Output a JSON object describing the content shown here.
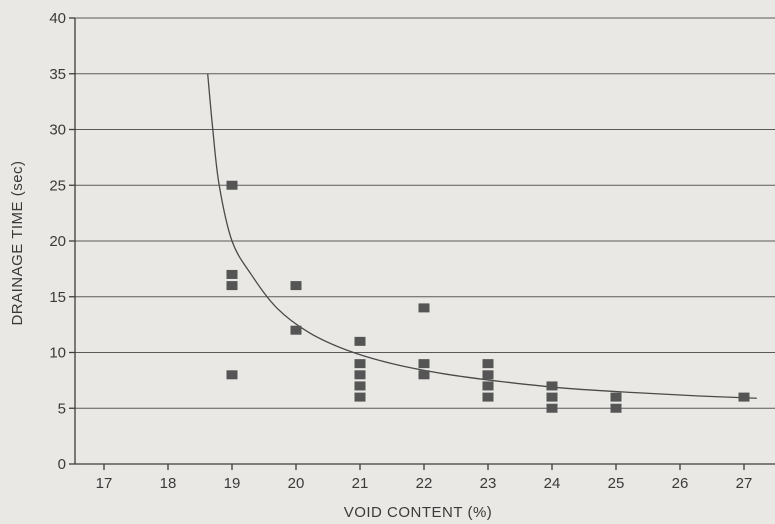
{
  "chart_data": {
    "type": "scatter",
    "xlabel": "VOID CONTENT (%)",
    "ylabel": "DRAINAGE TIME (sec)",
    "xlim": [
      16.5,
      27.5
    ],
    "ylim": [
      0,
      40
    ],
    "x_ticks": [
      17,
      18,
      19,
      20,
      21,
      22,
      23,
      24,
      25,
      26,
      27
    ],
    "y_ticks": [
      0,
      5,
      10,
      15,
      20,
      25,
      30,
      35,
      40
    ],
    "grid": "horizontal",
    "points": [
      {
        "x": 19,
        "y": 25
      },
      {
        "x": 19,
        "y": 17
      },
      {
        "x": 19,
        "y": 16
      },
      {
        "x": 19,
        "y": 8
      },
      {
        "x": 20,
        "y": 16
      },
      {
        "x": 20,
        "y": 12
      },
      {
        "x": 21,
        "y": 11
      },
      {
        "x": 21,
        "y": 9
      },
      {
        "x": 21,
        "y": 8
      },
      {
        "x": 21,
        "y": 7
      },
      {
        "x": 21,
        "y": 6
      },
      {
        "x": 22,
        "y": 14
      },
      {
        "x": 22,
        "y": 9
      },
      {
        "x": 22,
        "y": 8
      },
      {
        "x": 23,
        "y": 9
      },
      {
        "x": 23,
        "y": 8
      },
      {
        "x": 23,
        "y": 7
      },
      {
        "x": 23,
        "y": 6
      },
      {
        "x": 24,
        "y": 7
      },
      {
        "x": 24,
        "y": 6
      },
      {
        "x": 24,
        "y": 5
      },
      {
        "x": 25,
        "y": 6
      },
      {
        "x": 25,
        "y": 5
      },
      {
        "x": 27,
        "y": 6
      }
    ],
    "trend_curve": [
      {
        "x": 18.62,
        "y": 35
      },
      {
        "x": 18.7,
        "y": 30
      },
      {
        "x": 18.8,
        "y": 25
      },
      {
        "x": 19.0,
        "y": 20
      },
      {
        "x": 19.3,
        "y": 17
      },
      {
        "x": 19.7,
        "y": 14
      },
      {
        "x": 20.2,
        "y": 11.8
      },
      {
        "x": 20.8,
        "y": 10.2
      },
      {
        "x": 21.5,
        "y": 9.0
      },
      {
        "x": 22.3,
        "y": 8.1
      },
      {
        "x": 23.2,
        "y": 7.4
      },
      {
        "x": 24.2,
        "y": 6.8
      },
      {
        "x": 25.3,
        "y": 6.4
      },
      {
        "x": 26.3,
        "y": 6.1
      },
      {
        "x": 27.2,
        "y": 5.9
      }
    ]
  }
}
